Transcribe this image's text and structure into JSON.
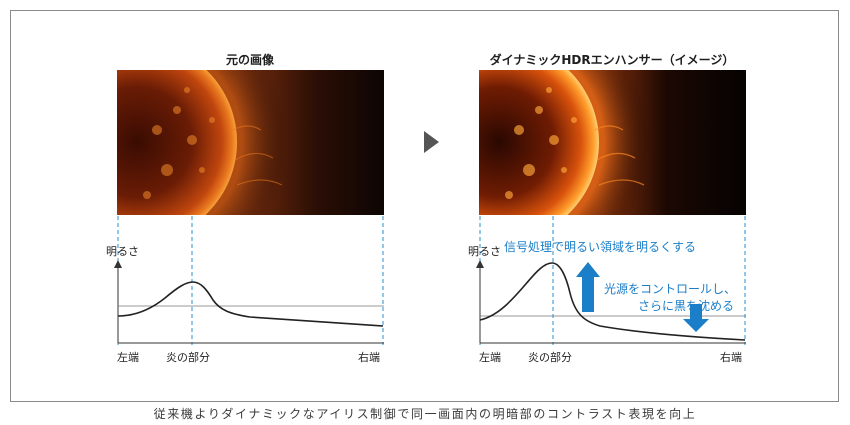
{
  "left_panel": {
    "title": "元の画像",
    "y_axis_label": "明るさ",
    "x_labels": {
      "left": "左端",
      "flame": "炎の部分",
      "right": "右端"
    }
  },
  "right_panel": {
    "title": "ダイナミックHDRエンハンサー（イメージ）",
    "y_axis_label": "明るさ",
    "x_labels": {
      "left": "左端",
      "flame": "炎の部分",
      "right": "右端"
    },
    "bright_note": "信号処理で明るい領域を明るくする",
    "dark_note_line1": "光源をコントロールし、",
    "dark_note_line2": "さらに黒を沈める"
  },
  "caption": "従来機よりダイナミックなアイリス制御で同一画面内の明暗部のコントラスト表現を向上",
  "colors": {
    "accent_blue": "#1a7ec8",
    "dashed_guide": "#2a8fd8",
    "frame": "#8a8a8a",
    "arrow_gray": "#555555"
  },
  "icons": [
    "next-arrow-icon",
    "up-arrow-icon",
    "down-arrow-icon"
  ]
}
